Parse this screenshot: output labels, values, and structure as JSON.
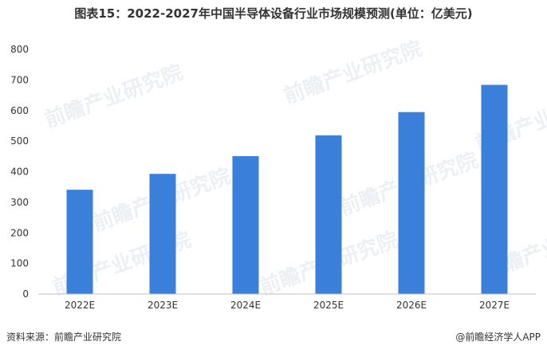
{
  "title": "图表15：2022-2027年中国半导体设备行业市场规模预测(单位：亿美元)",
  "watermark": "前瞻产业研究院",
  "footer": {
    "source": "资料来源：前瞻产业研究院",
    "brand": "@前瞻经济学人APP"
  },
  "colors": {
    "bar": "#3a7fd9"
  },
  "chart_data": {
    "type": "bar",
    "title": "图表15：2022-2027年中国半导体设备行业市场规模预测(单位：亿美元)",
    "xlabel": "",
    "ylabel": "",
    "categories": [
      "2022E",
      "2023E",
      "2024E",
      "2025E",
      "2026E",
      "2027E"
    ],
    "values": [
      341,
      393,
      451,
      519,
      595,
      684
    ],
    "ylim": [
      0,
      800
    ],
    "yticks": [
      0,
      100,
      200,
      300,
      400,
      500,
      600,
      700,
      800
    ],
    "grid": false,
    "legend": "none"
  }
}
